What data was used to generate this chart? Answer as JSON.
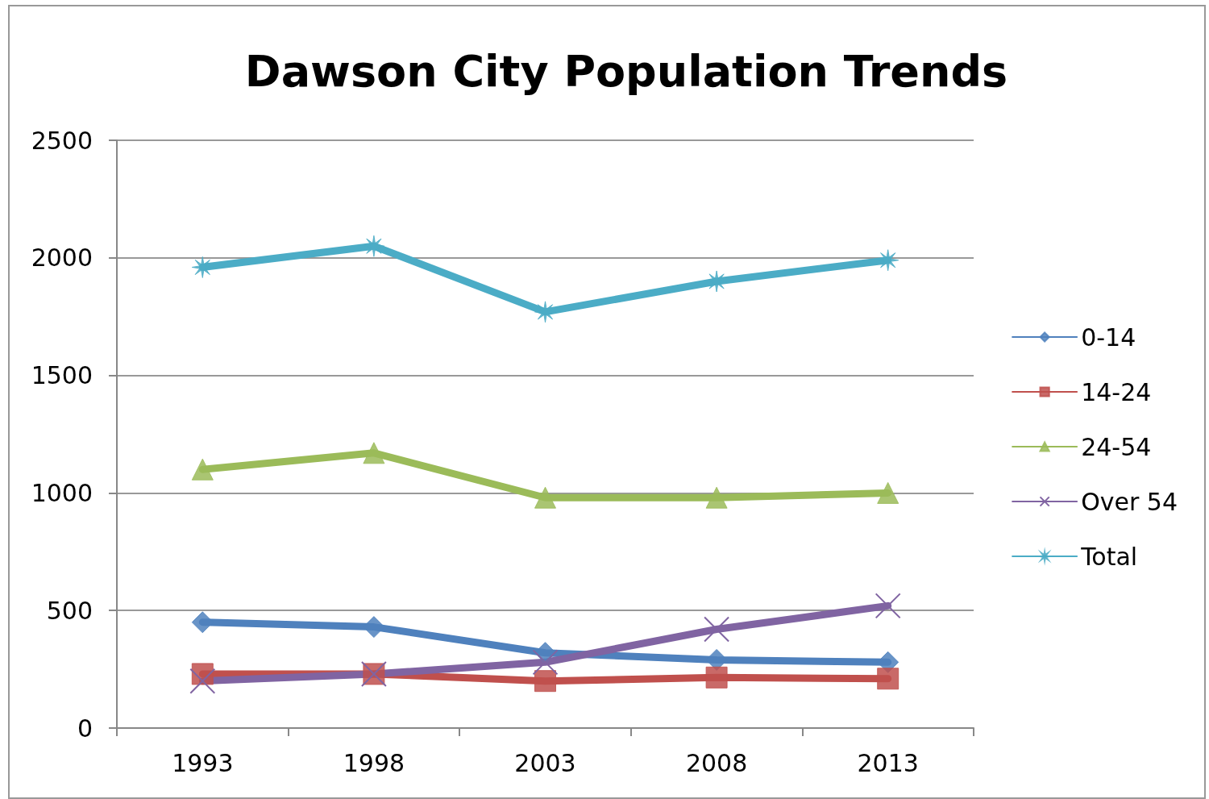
{
  "chart_data": {
    "type": "line",
    "title": "Dawson City Population Trends",
    "categories": [
      "1993",
      "1998",
      "2003",
      "2008",
      "2013"
    ],
    "series": [
      {
        "name": "0-14",
        "color": "#4f81bd",
        "marker": "diamond",
        "values": [
          450,
          430,
          320,
          290,
          280
        ]
      },
      {
        "name": "14-24",
        "color": "#c0504d",
        "marker": "square",
        "values": [
          230,
          230,
          200,
          215,
          210
        ]
      },
      {
        "name": "24-54",
        "color": "#9bbb59",
        "marker": "triangle",
        "values": [
          1100,
          1170,
          980,
          980,
          1000
        ]
      },
      {
        "name": "Over 54",
        "color": "#8064a2",
        "marker": "cross",
        "values": [
          200,
          230,
          280,
          420,
          520
        ]
      },
      {
        "name": "Total",
        "color": "#4bacc6",
        "marker": "star",
        "values": [
          1960,
          2050,
          1770,
          1900,
          1990
        ]
      }
    ],
    "ylim": [
      0,
      2500
    ],
    "yticks": [
      0,
      500,
      1000,
      1500,
      2000,
      2500
    ],
    "grid": "y",
    "legend": "right",
    "line_style": "solid"
  }
}
